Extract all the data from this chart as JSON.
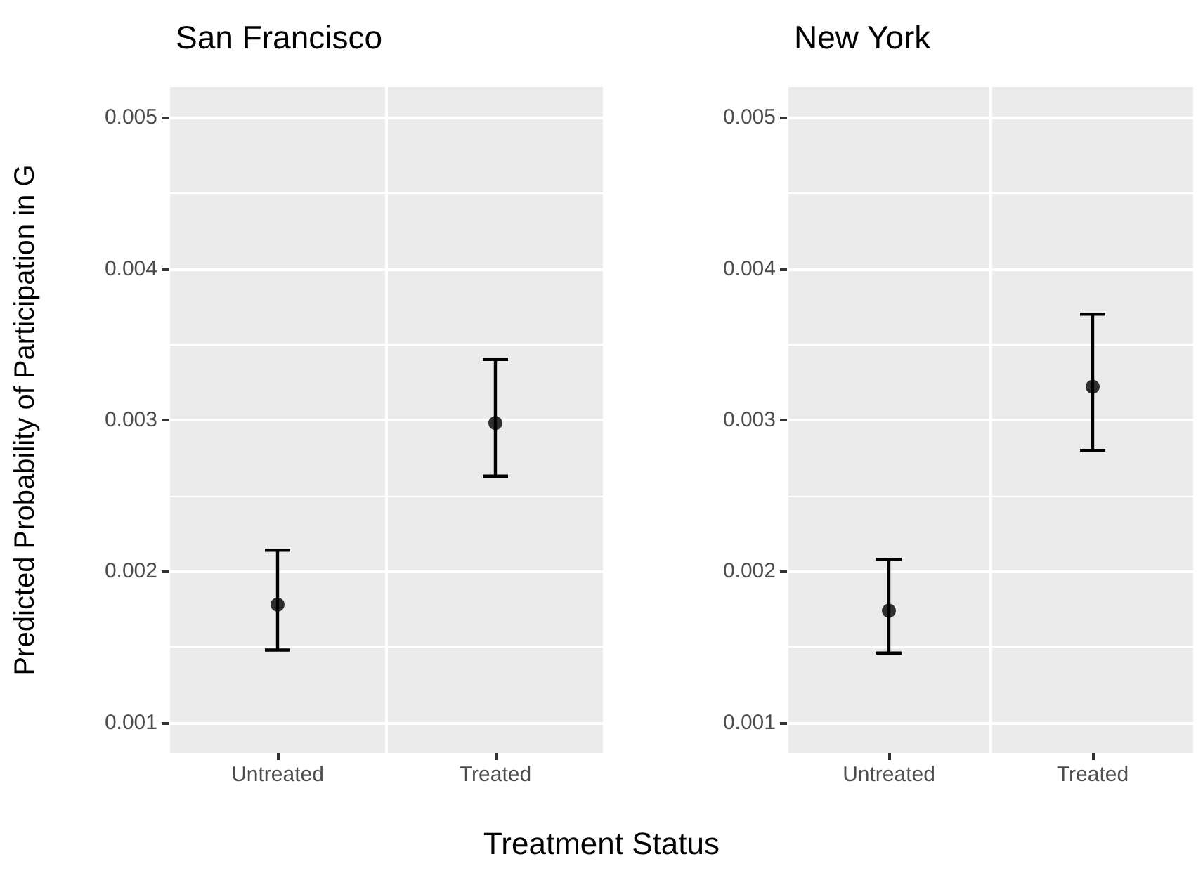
{
  "chart_data": [
    {
      "type": "scatter",
      "title": "San Francisco",
      "xlabel": "Treatment Status",
      "ylabel": "Predicted Probability of Participation in G",
      "categories": [
        "Untreated",
        "Treated"
      ],
      "values": [
        0.00178,
        0.00298
      ],
      "errors": [
        [
          0.00148,
          0.00214
        ],
        [
          0.00263,
          0.0034
        ]
      ],
      "color": "#000000",
      "marker": "circle",
      "ylim": [
        0.0008,
        0.0052
      ],
      "yticks": [
        0.001,
        0.002,
        0.003,
        0.004,
        0.005
      ],
      "grid": true
    },
    {
      "type": "scatter",
      "title": "New York",
      "categories": [
        "Untreated",
        "Treated"
      ],
      "values": [
        0.00174,
        0.00322
      ],
      "errors": [
        [
          0.00146,
          0.00208
        ],
        [
          0.0028,
          0.0037
        ]
      ],
      "color": "#000000",
      "marker": "circle",
      "ylim": [
        0.0008,
        0.0052
      ],
      "yticks": [
        0.001,
        0.002,
        0.003,
        0.004,
        0.005
      ],
      "grid": true
    }
  ]
}
